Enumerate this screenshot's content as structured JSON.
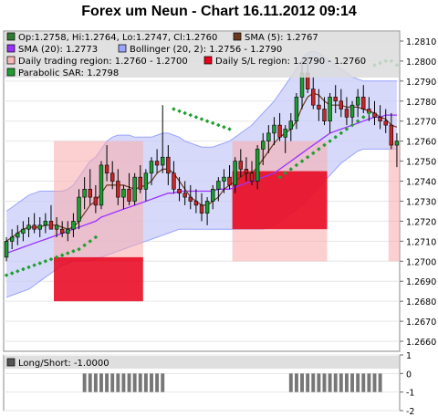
{
  "title": "Forex um Neun - Chart 16.11.2012 09:14",
  "chart_data": [
    {
      "type": "candlestick",
      "legend": [
        {
          "label": "Op:1.2758, Hi:1.2764, Lo:1.2747, Cl:1.2760",
          "color": "#2e7d32"
        },
        {
          "label": "SMA (5): 1.2767",
          "color": "#6b3a1e"
        },
        {
          "label": "SMA (20): 1.2773",
          "color": "#9b30ff"
        },
        {
          "label": "Bollinger (20, 2): 1.2756 - 1.2790",
          "color": "#9aa4ff"
        },
        {
          "label": "Daily trading region: 1.2760 - 1.2700",
          "color": "#f7b6b6"
        },
        {
          "label": "Daily S/L region: 1.2790 - 1.2760",
          "color": "#e8001a"
        },
        {
          "label": "Parabolic SAR: 1.2798",
          "color": "#1f9e2f"
        }
      ],
      "ylim": [
        1.2655,
        1.2815
      ],
      "yticks": [
        "1.2660",
        "1.2670",
        "1.2680",
        "1.2690",
        "1.2700",
        "1.2710",
        "1.2720",
        "1.2730",
        "1.2740",
        "1.2750",
        "1.2760",
        "1.2770",
        "1.2780",
        "1.2790",
        "1.2800",
        "1.2810"
      ],
      "candles": [
        [
          1.2702,
          1.2712,
          1.27,
          1.271
        ],
        [
          1.271,
          1.2716,
          1.2706,
          1.2712
        ],
        [
          1.2712,
          1.2718,
          1.2708,
          1.2714
        ],
        [
          1.2714,
          1.272,
          1.271,
          1.2716
        ],
        [
          1.2716,
          1.2722,
          1.2712,
          1.2718
        ],
        [
          1.2718,
          1.2724,
          1.2714,
          1.2716
        ],
        [
          1.2716,
          1.2722,
          1.2712,
          1.2718
        ],
        [
          1.2718,
          1.2724,
          1.2714,
          1.272
        ],
        [
          1.272,
          1.2728,
          1.2716,
          1.2716
        ],
        [
          1.2716,
          1.2722,
          1.2712,
          1.2718
        ],
        [
          1.2716,
          1.272,
          1.2712,
          1.2714
        ],
        [
          1.2714,
          1.272,
          1.271,
          1.2716
        ],
        [
          1.2716,
          1.2724,
          1.2712,
          1.272
        ],
        [
          1.272,
          1.2736,
          1.2716,
          1.2732
        ],
        [
          1.2732,
          1.2742,
          1.2726,
          1.2736
        ],
        [
          1.2736,
          1.2746,
          1.2728,
          1.2732
        ],
        [
          1.2732,
          1.2738,
          1.2724,
          1.2728
        ],
        [
          1.2728,
          1.275,
          1.2726,
          1.2748
        ],
        [
          1.2748,
          1.2758,
          1.274,
          1.2744
        ],
        [
          1.2744,
          1.275,
          1.2736,
          1.274
        ],
        [
          1.274,
          1.2746,
          1.2728,
          1.2732
        ],
        [
          1.2732,
          1.2738,
          1.2726,
          1.2736
        ],
        [
          1.2736,
          1.2744,
          1.2728,
          1.273
        ],
        [
          1.273,
          1.2744,
          1.2728,
          1.2742
        ],
        [
          1.2742,
          1.2748,
          1.2734,
          1.2736
        ],
        [
          1.2736,
          1.2746,
          1.273,
          1.2744
        ],
        [
          1.2744,
          1.2752,
          1.2738,
          1.275
        ],
        [
          1.275,
          1.2756,
          1.2744,
          1.2748
        ],
        [
          1.2748,
          1.2778,
          1.2744,
          1.2752
        ],
        [
          1.2752,
          1.2758,
          1.2738,
          1.2744
        ],
        [
          1.2744,
          1.275,
          1.2734,
          1.2736
        ],
        [
          1.2736,
          1.2742,
          1.273,
          1.2734
        ],
        [
          1.2734,
          1.274,
          1.2728,
          1.2732
        ],
        [
          1.2732,
          1.2738,
          1.2726,
          1.273
        ],
        [
          1.273,
          1.2736,
          1.2724,
          1.2728
        ],
        [
          1.2728,
          1.2734,
          1.272,
          1.2724
        ],
        [
          1.2724,
          1.2732,
          1.2718,
          1.273
        ],
        [
          1.273,
          1.2738,
          1.2726,
          1.2736
        ],
        [
          1.2736,
          1.2742,
          1.273,
          1.274
        ],
        [
          1.274,
          1.2746,
          1.2734,
          1.2742
        ],
        [
          1.2742,
          1.2748,
          1.2736,
          1.2738
        ],
        [
          1.2738,
          1.2752,
          1.2734,
          1.275
        ],
        [
          1.275,
          1.2756,
          1.2742,
          1.2746
        ],
        [
          1.2746,
          1.2752,
          1.274,
          1.2744
        ],
        [
          1.2744,
          1.275,
          1.2738,
          1.274
        ],
        [
          1.274,
          1.2758,
          1.2736,
          1.2756
        ],
        [
          1.2756,
          1.2764,
          1.2748,
          1.276
        ],
        [
          1.276,
          1.2768,
          1.2754,
          1.2764
        ],
        [
          1.2764,
          1.2772,
          1.2758,
          1.2768
        ],
        [
          1.2768,
          1.2774,
          1.276,
          1.2762
        ],
        [
          1.2762,
          1.2768,
          1.2754,
          1.2766
        ],
        [
          1.2766,
          1.2774,
          1.276,
          1.277
        ],
        [
          1.277,
          1.2784,
          1.2766,
          1.2782
        ],
        [
          1.2782,
          1.28,
          1.2776,
          1.2794
        ],
        [
          1.2794,
          1.2802,
          1.2784,
          1.2786
        ],
        [
          1.2786,
          1.2792,
          1.2776,
          1.2778
        ],
        [
          1.2778,
          1.2786,
          1.277,
          1.2776
        ],
        [
          1.2776,
          1.2782,
          1.2768,
          1.277
        ],
        [
          1.277,
          1.2784,
          1.2764,
          1.2782
        ],
        [
          1.2782,
          1.2788,
          1.2774,
          1.278
        ],
        [
          1.278,
          1.2786,
          1.2772,
          1.2776
        ],
        [
          1.2776,
          1.2782,
          1.2768,
          1.2772
        ],
        [
          1.2772,
          1.278,
          1.2768,
          1.2778
        ],
        [
          1.2778,
          1.2786,
          1.2772,
          1.2782
        ],
        [
          1.2782,
          1.2788,
          1.2774,
          1.2776
        ],
        [
          1.2776,
          1.2782,
          1.277,
          1.2774
        ],
        [
          1.2774,
          1.278,
          1.2768,
          1.2772
        ],
        [
          1.2772,
          1.2778,
          1.2766,
          1.277
        ],
        [
          1.277,
          1.2776,
          1.2764,
          1.2768
        ],
        [
          1.2768,
          1.2774,
          1.2756,
          1.2758
        ],
        [
          1.2758,
          1.2764,
          1.2747,
          1.276
        ]
      ],
      "sma5": [
        1.271,
        1.2712,
        1.2714,
        1.2716,
        1.2717,
        1.2717,
        1.2717,
        1.2718,
        1.2718,
        1.2718,
        1.2717,
        1.2716,
        1.2717,
        1.272,
        1.2724,
        1.2728,
        1.273,
        1.2734,
        1.2738,
        1.2738,
        1.2738,
        1.2738,
        1.2737,
        1.2736,
        1.2737,
        1.2738,
        1.274,
        1.2744,
        1.2746,
        1.2746,
        1.2744,
        1.274,
        1.2736,
        1.2732,
        1.273,
        1.2728,
        1.2728,
        1.273,
        1.2732,
        1.2736,
        1.2738,
        1.274,
        1.2742,
        1.2744,
        1.2744,
        1.2747,
        1.2751,
        1.2755,
        1.2759,
        1.2762,
        1.2764,
        1.2766,
        1.277,
        1.2777,
        1.2782,
        1.2784,
        1.2783,
        1.278,
        1.2778,
        1.2778,
        1.2778,
        1.2777,
        1.2777,
        1.2777,
        1.2776,
        1.2775,
        1.2774,
        1.2772,
        1.2771,
        1.2768,
        1.2767
      ],
      "sma20": [
        1.2704,
        1.2705,
        1.2706,
        1.2707,
        1.2708,
        1.2709,
        1.271,
        1.2711,
        1.2712,
        1.2713,
        1.2714,
        1.2715,
        1.2716,
        1.2717,
        1.2718,
        1.2719,
        1.272,
        1.2722,
        1.2723,
        1.2724,
        1.2725,
        1.2726,
        1.2727,
        1.2728,
        1.2729,
        1.273,
        1.2731,
        1.2732,
        1.2733,
        1.2734,
        1.2734,
        1.2735,
        1.2735,
        1.2735,
        1.2735,
        1.2735,
        1.2735,
        1.2735,
        1.2736,
        1.2736,
        1.2736,
        1.2737,
        1.2738,
        1.2739,
        1.274,
        1.2741,
        1.2742,
        1.2743,
        1.2744,
        1.2746,
        1.2748,
        1.275,
        1.2752,
        1.2754,
        1.2756,
        1.2758,
        1.276,
        1.2762,
        1.2764,
        1.2765,
        1.2766,
        1.2767,
        1.2768,
        1.2769,
        1.277,
        1.2771,
        1.2772,
        1.2772,
        1.2773,
        1.2773,
        1.2773
      ],
      "boll_upper": [
        1.2725,
        1.2727,
        1.2729,
        1.2731,
        1.2733,
        1.2734,
        1.2735,
        1.2735,
        1.2735,
        1.2735,
        1.2735,
        1.2736,
        1.2738,
        1.2742,
        1.2746,
        1.275,
        1.2752,
        1.2756,
        1.276,
        1.2762,
        1.2763,
        1.2763,
        1.2763,
        1.2762,
        1.2762,
        1.2762,
        1.2762,
        1.2763,
        1.2764,
        1.2764,
        1.2763,
        1.2762,
        1.276,
        1.2759,
        1.2758,
        1.2757,
        1.2757,
        1.2757,
        1.2758,
        1.2759,
        1.276,
        1.2762,
        1.2764,
        1.2766,
        1.2768,
        1.2771,
        1.2774,
        1.2777,
        1.278,
        1.2784,
        1.2788,
        1.2792,
        1.2796,
        1.2801,
        1.2804,
        1.2805,
        1.2804,
        1.2802,
        1.28,
        1.2798,
        1.2796,
        1.2794,
        1.2792,
        1.2791,
        1.279,
        1.279,
        1.279,
        1.279,
        1.279,
        1.279,
        1.279
      ],
      "boll_lower": [
        1.2682,
        1.2683,
        1.2684,
        1.2685,
        1.2686,
        1.2688,
        1.269,
        1.2692,
        1.2694,
        1.2696,
        1.2698,
        1.2699,
        1.27,
        1.27,
        1.27,
        1.27,
        1.2701,
        1.2702,
        1.2703,
        1.2704,
        1.2705,
        1.2706,
        1.2707,
        1.2708,
        1.2709,
        1.271,
        1.2711,
        1.2712,
        1.2713,
        1.2714,
        1.2715,
        1.2716,
        1.2716,
        1.2716,
        1.2716,
        1.2716,
        1.2716,
        1.2716,
        1.2716,
        1.2716,
        1.2716,
        1.2716,
        1.2716,
        1.2716,
        1.2716,
        1.2716,
        1.2716,
        1.2717,
        1.2718,
        1.272,
        1.2722,
        1.2724,
        1.2726,
        1.2728,
        1.2731,
        1.2734,
        1.2737,
        1.274,
        1.2743,
        1.2746,
        1.2749,
        1.2751,
        1.2753,
        1.2755,
        1.2756,
        1.2756,
        1.2756,
        1.2756,
        1.2756,
        1.2756,
        1.2756
      ],
      "sar": [
        [
          0,
          1.2693
        ],
        [
          1,
          1.2694
        ],
        [
          2,
          1.2695
        ],
        [
          3,
          1.2696
        ],
        [
          4,
          1.2697
        ],
        [
          5,
          1.2698
        ],
        [
          6,
          1.2699
        ],
        [
          7,
          1.27
        ],
        [
          8,
          1.2701
        ],
        [
          9,
          1.2702
        ],
        [
          10,
          1.2703
        ],
        [
          11,
          1.2704
        ],
        [
          12,
          1.2705
        ],
        [
          13,
          1.2706
        ],
        [
          14,
          1.2708
        ],
        [
          15,
          1.271
        ],
        [
          16,
          1.2712
        ],
        [
          30,
          1.2776
        ],
        [
          31,
          1.2775
        ],
        [
          32,
          1.2774
        ],
        [
          33,
          1.2773
        ],
        [
          34,
          1.2772
        ],
        [
          35,
          1.2771
        ],
        [
          36,
          1.277
        ],
        [
          37,
          1.2769
        ],
        [
          38,
          1.2768
        ],
        [
          39,
          1.2767
        ],
        [
          40,
          1.2766
        ],
        [
          49,
          1.2742
        ],
        [
          50,
          1.2744
        ],
        [
          51,
          1.2746
        ],
        [
          52,
          1.2748
        ],
        [
          53,
          1.275
        ],
        [
          54,
          1.2752
        ],
        [
          55,
          1.2754
        ],
        [
          56,
          1.2756
        ],
        [
          57,
          1.2758
        ],
        [
          58,
          1.276
        ],
        [
          59,
          1.2762
        ],
        [
          60,
          1.2764
        ],
        [
          61,
          1.2766
        ],
        [
          62,
          1.2768
        ],
        [
          63,
          1.277
        ],
        [
          64,
          1.2772
        ],
        [
          65,
          1.2774
        ],
        [
          66,
          1.2798
        ],
        [
          67,
          1.2799
        ],
        [
          68,
          1.28
        ],
        [
          69,
          1.28
        ],
        [
          70,
          1.2798
        ]
      ],
      "trading_regions": [
        {
          "from": 9,
          "to": 24,
          "low": 1.27,
          "high": 1.276
        },
        {
          "from": 41,
          "to": 57,
          "low": 1.27,
          "high": 1.276
        },
        {
          "from": 69,
          "to": 70,
          "low": 1.27,
          "high": 1.276
        }
      ],
      "sl_regions": [
        {
          "from": 9,
          "to": 24,
          "low": 1.268,
          "high": 1.2702
        },
        {
          "from": 41,
          "to": 57,
          "low": 1.2716,
          "high": 1.2745
        }
      ]
    },
    {
      "type": "bar",
      "legend": [
        {
          "label": "Long/Short: -1.0000",
          "color": "#555555"
        }
      ],
      "ylim": [
        -2,
        1
      ],
      "yticks": [
        "1",
        "0",
        "-1",
        "-2"
      ],
      "values": [
        0,
        0,
        0,
        0,
        0,
        0,
        0,
        0,
        0,
        0,
        0,
        0,
        0,
        0,
        0,
        0,
        0,
        0,
        0,
        0,
        0,
        0,
        0,
        0,
        0,
        0,
        0,
        0,
        0,
        0,
        0,
        0,
        0,
        0,
        0,
        0,
        0,
        0,
        0,
        0,
        0,
        0,
        0,
        0,
        0,
        0,
        0,
        0,
        0,
        0,
        0,
        0,
        0,
        0,
        0,
        0,
        0,
        0,
        0,
        0,
        0,
        0,
        0,
        0,
        0,
        0,
        0,
        0,
        0,
        0,
        0
      ],
      "bars": [
        {
          "from": 14,
          "to": 28,
          "value": -1
        },
        {
          "from": 51,
          "to": 67,
          "value": -1
        }
      ]
    }
  ]
}
